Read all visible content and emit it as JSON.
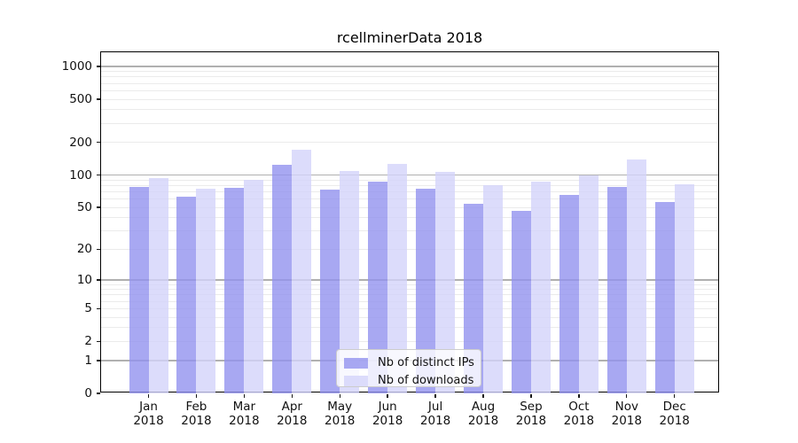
{
  "chart_data": {
    "type": "bar",
    "title": "rcellminerData 2018",
    "x_tick_months": [
      "Jan",
      "Feb",
      "Mar",
      "Apr",
      "May",
      "Jun",
      "Jul",
      "Aug",
      "Sep",
      "Oct",
      "Nov",
      "Dec"
    ],
    "x_tick_year": "2018",
    "categories": [
      "Jan 2018",
      "Feb 2018",
      "Mar 2018",
      "Apr 2018",
      "May 2018",
      "Jun 2018",
      "Jul 2018",
      "Aug 2018",
      "Sep 2018",
      "Oct 2018",
      "Nov 2018",
      "Dec 2018"
    ],
    "series": [
      {
        "name": "Nb of distinct IPs",
        "color": "rgba(146,146,239,0.8)",
        "values": [
          77,
          63,
          76,
          124,
          73,
          87,
          74,
          54,
          46,
          65,
          78,
          56
        ]
      },
      {
        "name": "Nb of downloads",
        "color": "rgba(211,211,250,0.8)",
        "values": [
          93,
          74,
          91,
          172,
          108,
          127,
          106,
          81,
          87,
          100,
          140,
          82
        ]
      }
    ],
    "yscale": "log1p",
    "y_ticks": [
      1000,
      500,
      200,
      100,
      50,
      20,
      10,
      5,
      2,
      1,
      0
    ],
    "ylim": [
      0,
      1350
    ],
    "grid": "both",
    "legend_position": "lower-center-inside"
  },
  "colors": {
    "bar_distinct_ips": "rgba(146,146,239,0.8)",
    "bar_downloads": "rgba(211,211,250,0.8)",
    "grid_major": "#b0b0b0",
    "grid_minor": "#ebebeb",
    "spine": "#1a1a1a",
    "legend_border": "#cccccc"
  }
}
